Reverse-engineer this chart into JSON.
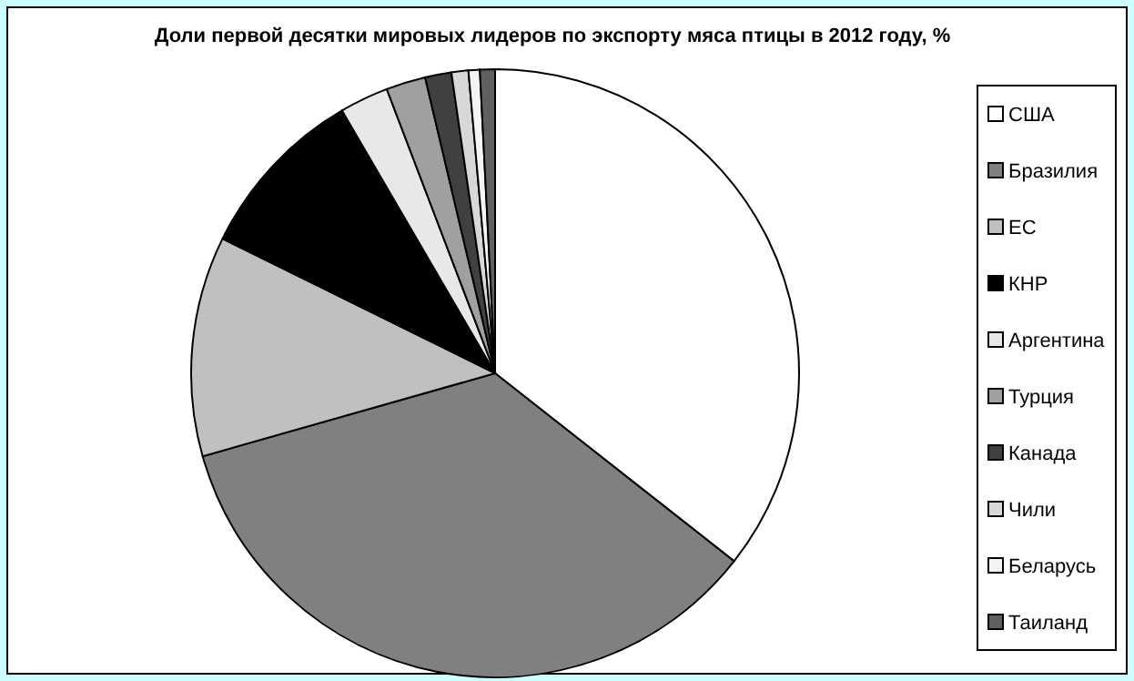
{
  "chart_data": {
    "type": "pie",
    "title": "Доли первой десятки мировых лидеров по экспорту мяса птицы в 2012 году, %",
    "categories": [
      "США",
      "Бразилия",
      "ЕС",
      "КНР",
      "Аргентина",
      "Турция",
      "Канада",
      "Чили",
      "Беларусь",
      "Таиланд"
    ],
    "values": [
      35.6,
      35,
      11.7,
      9.3,
      2.6,
      2.1,
      1.4,
      0.9,
      0.6,
      0.8
    ],
    "colors": [
      "#ffffff",
      "#808080",
      "#c0c0c0",
      "#000000",
      "#e8e8e8",
      "#a0a0a0",
      "#404040",
      "#d8d8d8",
      "#f4f4f4",
      "#606060"
    ],
    "legend": "right"
  }
}
